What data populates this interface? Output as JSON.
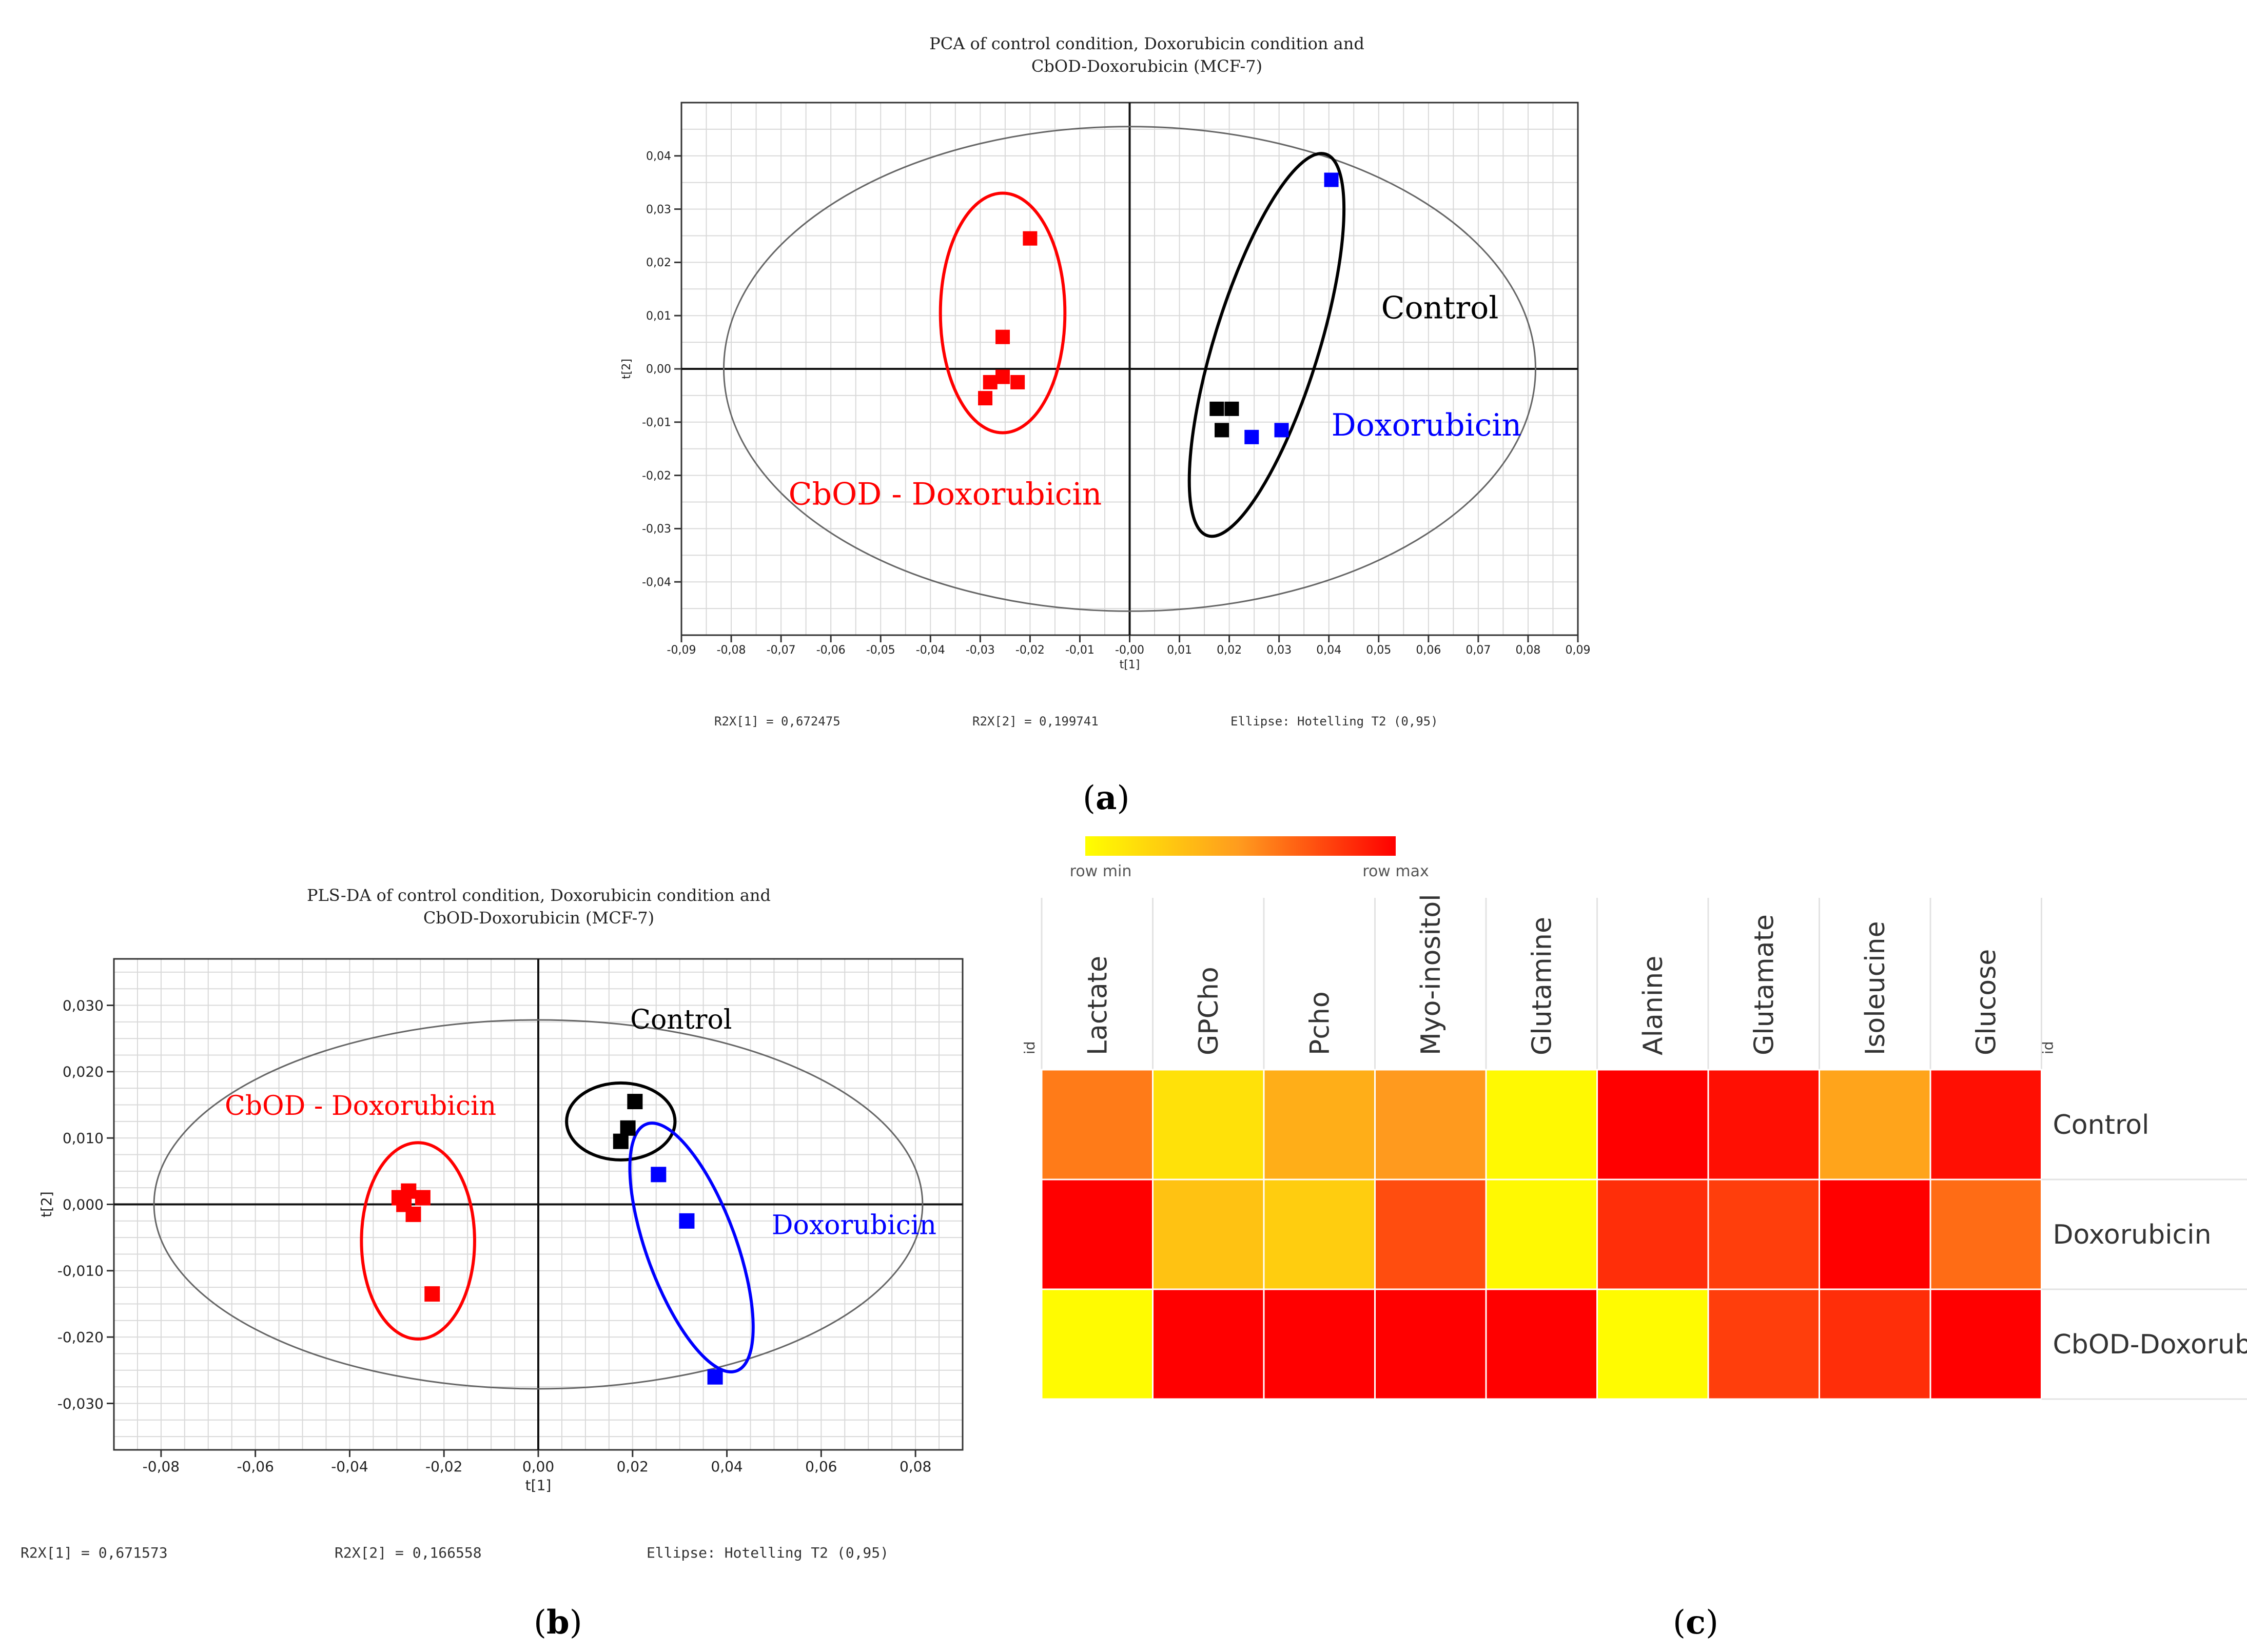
{
  "panel_labels": {
    "a": "a",
    "b": "b",
    "c": "c"
  },
  "colors": {
    "red": "#ff0000",
    "black": "#000000",
    "blue": "#0000ff",
    "grid": "#d9d9d9",
    "ellipse": "#666666"
  },
  "chart_data": [
    {
      "type": "scatter",
      "panel": "a",
      "title_lines": [
        "PCA of control condition, Doxorubicin condition and",
        "CbOD-Doxorubicin (MCF-7)"
      ],
      "xlabel": "t[1]",
      "ylabel": "t[2]",
      "xlim": [
        -0.09,
        0.09
      ],
      "ylim": [
        -0.05,
        0.05
      ],
      "xticks": [
        -0.09,
        -0.08,
        -0.07,
        -0.06,
        -0.05,
        -0.04,
        -0.03,
        -0.02,
        -0.01,
        0.0,
        0.01,
        0.02,
        0.03,
        0.04,
        0.05,
        0.06,
        0.07,
        0.08,
        0.09
      ],
      "xtick_labels": [
        "-0,09",
        "-0,08",
        "-0,07",
        "-0,06",
        "-0,05",
        "-0,04",
        "-0,03",
        "-0,02",
        "-0,01",
        "-0,00",
        "0,01",
        "0,02",
        "0,03",
        "0,04",
        "0,05",
        "0,06",
        "0,07",
        "0,08",
        "0,09"
      ],
      "yticks": [
        0.04,
        0.03,
        0.02,
        0.01,
        0.0,
        -0.01,
        -0.02,
        -0.03,
        -0.04
      ],
      "ytick_labels": [
        "0,04",
        "0,03",
        "0,02",
        "0,01",
        "0,00",
        "-0,01",
        "-0,02",
        "-0,03",
        "-0,04"
      ],
      "grid_step_x": 0.005,
      "grid_step_y": 0.005,
      "series": [
        {
          "name": "CbOD - Doxorubicin",
          "color": "#ff0000",
          "points": [
            [
              -0.02,
              0.0245
            ],
            [
              -0.0255,
              0.006
            ],
            [
              -0.0255,
              -0.0015
            ],
            [
              -0.0225,
              -0.0025
            ],
            [
              -0.028,
              -0.0025
            ],
            [
              -0.029,
              -0.0055
            ]
          ]
        },
        {
          "name": "Control",
          "color": "#000000",
          "points": [
            [
              0.0175,
              -0.0075
            ],
            [
              0.0205,
              -0.0075
            ],
            [
              0.0185,
              -0.0115
            ]
          ]
        },
        {
          "name": "Doxorubicin",
          "color": "#0000ff",
          "points": [
            [
              0.0405,
              0.0355
            ],
            [
              0.0305,
              -0.0115
            ],
            [
              0.0245,
              -0.0128
            ]
          ]
        }
      ],
      "hotelling_ellipse": {
        "center": [
          0.0,
          0.0
        ],
        "radii": [
          0.0815,
          0.0455
        ]
      },
      "group_ellipses": [
        {
          "name": "CbOD - Doxorubicin",
          "color": "#ff0000",
          "center": [
            -0.0255,
            0.0105
          ],
          "radii": [
            0.0125,
            0.0225
          ],
          "angle": 0
        },
        {
          "name": "Control",
          "color": "#000000",
          "center": [
            0.0275,
            0.0045
          ],
          "radii": [
            0.0105,
            0.0375
          ],
          "angle": 0.3
        }
      ],
      "annotations": [
        {
          "text": "Control",
          "color": "#000000",
          "at": [
            0.0505,
            0.0095
          ]
        },
        {
          "text": "Doxorubicin",
          "color": "#0000ff",
          "at": [
            0.0405,
            -0.0125
          ]
        },
        {
          "text": "CbOD - Doxorubicin",
          "color": "#ff0000",
          "at": [
            -0.0685,
            -0.0255
          ]
        }
      ],
      "footer": {
        "r2x1": "R2X[1] = 0,672475",
        "r2x2": "R2X[2] = 0,199741",
        "ellipse": "Ellipse: Hotelling T2 (0,95)"
      }
    },
    {
      "type": "scatter",
      "panel": "b",
      "title_lines": [
        "PLS-DA of control condition, Doxorubicin condition and",
        "CbOD-Doxorubicin (MCF-7)"
      ],
      "xlabel": "t[1]",
      "ylabel": "t[2]",
      "xlim": [
        -0.09,
        0.09
      ],
      "ylim": [
        -0.037,
        0.037
      ],
      "xticks": [
        -0.08,
        -0.06,
        -0.04,
        -0.02,
        0.0,
        0.02,
        0.04,
        0.06,
        0.08
      ],
      "xtick_labels": [
        "-0,08",
        "-0,06",
        "-0,04",
        "-0,02",
        "0,00",
        "0,02",
        "0,04",
        "0,06",
        "0,08"
      ],
      "yticks": [
        0.03,
        0.02,
        0.01,
        0.0,
        -0.01,
        -0.02,
        -0.03
      ],
      "ytick_labels": [
        "0,030",
        "0,020",
        "0,010",
        "0,000",
        "-0,010",
        "-0,020",
        "-0,030"
      ],
      "grid_step_x": 0.005,
      "grid_step_y": 0.0025,
      "series": [
        {
          "name": "CbOD - Doxorubicin",
          "color": "#ff0000",
          "points": [
            [
              -0.0295,
              0.001
            ],
            [
              -0.0275,
              0.002
            ],
            [
              -0.0245,
              0.001
            ],
            [
              -0.0285,
              0.0
            ],
            [
              -0.0265,
              -0.0015
            ],
            [
              -0.0225,
              -0.0135
            ]
          ]
        },
        {
          "name": "Control",
          "color": "#000000",
          "points": [
            [
              0.0205,
              0.0155
            ],
            [
              0.019,
              0.0115
            ],
            [
              0.0175,
              0.0095
            ]
          ]
        },
        {
          "name": "Doxorubicin",
          "color": "#0000ff",
          "points": [
            [
              0.0255,
              0.0045
            ],
            [
              0.0315,
              -0.0025
            ],
            [
              0.0375,
              -0.026
            ]
          ]
        }
      ],
      "hotelling_ellipse": {
        "center": [
          0.0,
          0.0
        ],
        "radii": [
          0.0815,
          0.0278
        ]
      },
      "group_ellipses": [
        {
          "name": "CbOD - Doxorubicin",
          "color": "#ff0000",
          "center": [
            -0.0255,
            -0.0055
          ],
          "radii": [
            0.012,
            0.0148
          ],
          "angle": 0
        },
        {
          "name": "Control",
          "color": "#000000",
          "center": [
            0.0175,
            0.0125
          ],
          "radii": [
            0.0115,
            0.0058
          ],
          "angle": 0
        },
        {
          "name": "Doxorubicin",
          "color": "#0000ff",
          "center": [
            0.0325,
            -0.0065
          ],
          "radii": [
            0.0095,
            0.0198
          ],
          "angle": -0.35
        }
      ],
      "annotations": [
        {
          "text": "Control",
          "color": "#000000",
          "at": [
            0.0195,
            0.0265
          ]
        },
        {
          "text": "CbOD - Doxorubicin",
          "color": "#ff0000",
          "at": [
            -0.0665,
            0.0135
          ]
        },
        {
          "text": "Doxorubicin",
          "color": "#0000ff",
          "at": [
            0.0495,
            -0.0045
          ]
        }
      ],
      "footer": {
        "r2x1": "R2X[1] = 0,671573",
        "r2x2": "R2X[2] = 0,166558",
        "ellipse": "Ellipse: Hotelling T2 (0,95)"
      }
    },
    {
      "type": "heatmap",
      "panel": "c",
      "legend": {
        "min_label": "row min",
        "max_label": "row max",
        "colors": [
          "#ffff00",
          "#ff9a1e",
          "#ff0000"
        ]
      },
      "corner_label": "id",
      "columns": [
        "Lactate",
        "GPCho",
        "Pcho",
        "Myo-inositol",
        "Glutamine",
        "Alanine",
        "Glutamate",
        "Isoleucine",
        "Glucose"
      ],
      "rows": [
        "Control",
        "Doxorubicin",
        "CbOD-Doxorubi"
      ],
      "values": [
        [
          0.6,
          0.15,
          0.4,
          0.5,
          0.03,
          1.0,
          0.95,
          0.45,
          0.95
        ],
        [
          1.0,
          0.3,
          0.25,
          0.75,
          0.03,
          0.85,
          0.8,
          1.0,
          0.65
        ],
        [
          0.02,
          1.0,
          1.0,
          1.0,
          1.0,
          0.02,
          0.8,
          0.85,
          1.0
        ]
      ]
    }
  ]
}
